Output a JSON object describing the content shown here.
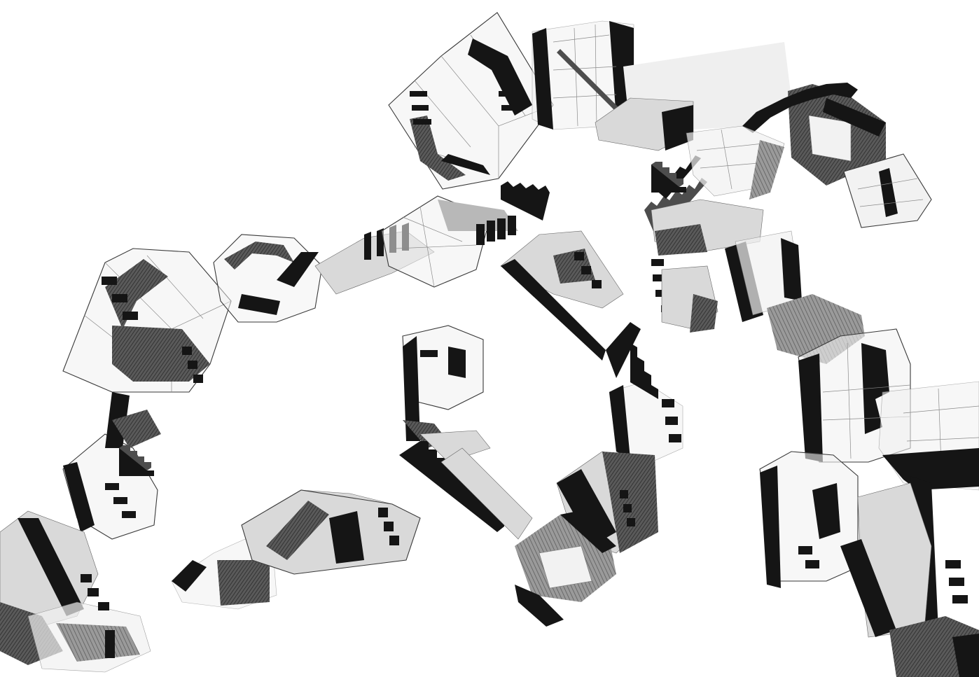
{
  "artwork": {
    "subject": "pencil-drawing-collage",
    "palette": {
      "background": "#ffffff",
      "ink": "#151515",
      "graphite": "#4d4d4d",
      "paper_shade": "#d9d9d9"
    },
    "icons": [
      "staircase-icon",
      "wireframe-cube-icon"
    ]
  }
}
